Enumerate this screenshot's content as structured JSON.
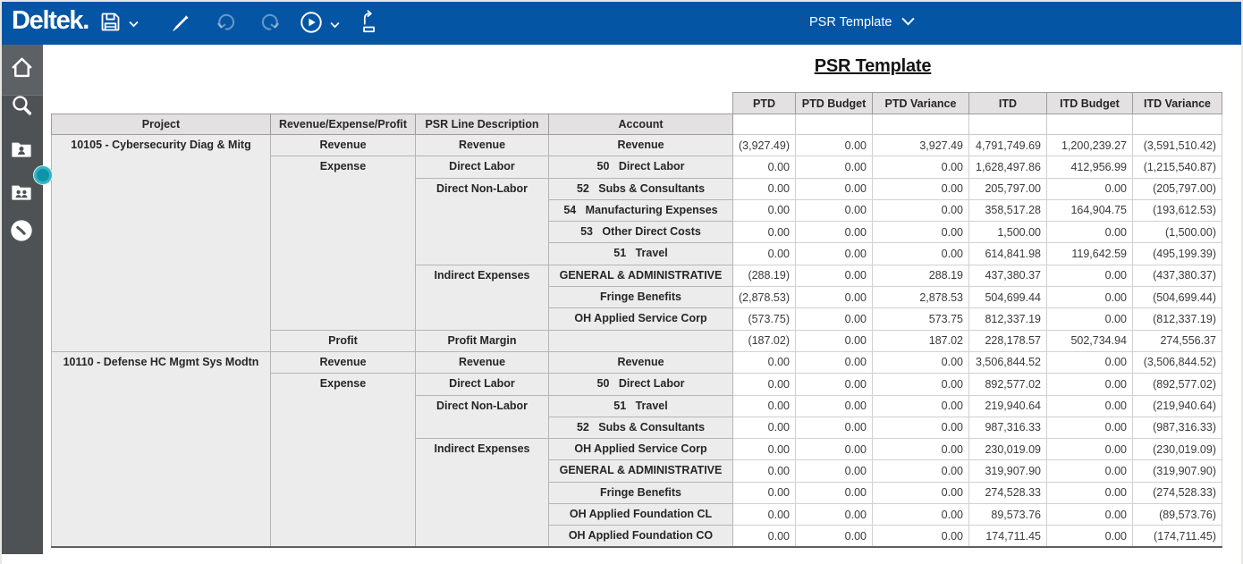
{
  "topbar": {
    "logo": "Deltek.",
    "template_selector": "PSR Template",
    "tools": {
      "save": "Save",
      "edit": "Edit",
      "undo": "Undo",
      "redo": "Redo",
      "run": "Run",
      "export": "Export"
    }
  },
  "sidebar": {
    "items": [
      "home",
      "search",
      "employee",
      "employees",
      "history"
    ]
  },
  "colors": {
    "topbar_blue": "#0455a4",
    "sidebar_gray": "#4e5254",
    "header_gray": "#e3e1e1",
    "label_gray": "#edecec",
    "handle_teal": "#0e93a8"
  },
  "report": {
    "title": "PSR Template",
    "row_headers": [
      "Project",
      "Revenue/Expense/Profit",
      "PSR Line Description",
      "Account"
    ],
    "value_headers": [
      "PTD",
      "PTD Budget",
      "PTD Variance",
      "ITD",
      "ITD Budget",
      "ITD Variance"
    ],
    "projects": [
      {
        "name": "10105 - Cybersecurity Diag & Mitg",
        "groups": [
          {
            "type": "Revenue",
            "lines": [
              {
                "desc": "Revenue",
                "accounts": [
                  {
                    "account": "Revenue",
                    "values": [
                      "(3,927.49)",
                      "0.00",
                      "3,927.49",
                      "4,791,749.69",
                      "1,200,239.27",
                      "(3,591,510.42)"
                    ]
                  }
                ]
              }
            ]
          },
          {
            "type": "Expense",
            "lines": [
              {
                "desc": "Direct Labor",
                "accounts": [
                  {
                    "account": "50   Direct Labor",
                    "values": [
                      "0.00",
                      "0.00",
                      "0.00",
                      "1,628,497.86",
                      "412,956.99",
                      "(1,215,540.87)"
                    ]
                  }
                ]
              },
              {
                "desc": "Direct Non-Labor",
                "accounts": [
                  {
                    "account": "52   Subs & Consultants",
                    "values": [
                      "0.00",
                      "0.00",
                      "0.00",
                      "205,797.00",
                      "0.00",
                      "(205,797.00)"
                    ]
                  },
                  {
                    "account": "54   Manufacturing Expenses",
                    "values": [
                      "0.00",
                      "0.00",
                      "0.00",
                      "358,517.28",
                      "164,904.75",
                      "(193,612.53)"
                    ]
                  },
                  {
                    "account": "53   Other Direct Costs",
                    "values": [
                      "0.00",
                      "0.00",
                      "0.00",
                      "1,500.00",
                      "0.00",
                      "(1,500.00)"
                    ]
                  },
                  {
                    "account": "51   Travel",
                    "values": [
                      "0.00",
                      "0.00",
                      "0.00",
                      "614,841.98",
                      "119,642.59",
                      "(495,199.39)"
                    ]
                  }
                ]
              },
              {
                "desc": "Indirect Expenses",
                "accounts": [
                  {
                    "account": "GENERAL & ADMINISTRATIVE",
                    "values": [
                      "(288.19)",
                      "0.00",
                      "288.19",
                      "437,380.37",
                      "0.00",
                      "(437,380.37)"
                    ]
                  },
                  {
                    "account": "Fringe Benefits",
                    "values": [
                      "(2,878.53)",
                      "0.00",
                      "2,878.53",
                      "504,699.44",
                      "0.00",
                      "(504,699.44)"
                    ]
                  },
                  {
                    "account": "OH Applied Service Corp",
                    "values": [
                      "(573.75)",
                      "0.00",
                      "573.75",
                      "812,337.19",
                      "0.00",
                      "(812,337.19)"
                    ]
                  }
                ]
              }
            ]
          },
          {
            "type": "Profit",
            "lines": [
              {
                "desc": "Profit Margin",
                "accounts": [
                  {
                    "account": "",
                    "values": [
                      "(187.02)",
                      "0.00",
                      "187.02",
                      "228,178.57",
                      "502,734.94",
                      "274,556.37"
                    ]
                  }
                ]
              }
            ]
          }
        ]
      },
      {
        "name": "10110 - Defense HC Mgmt Sys Modtn",
        "groups": [
          {
            "type": "Revenue",
            "lines": [
              {
                "desc": "Revenue",
                "accounts": [
                  {
                    "account": "Revenue",
                    "values": [
                      "0.00",
                      "0.00",
                      "0.00",
                      "3,506,844.52",
                      "0.00",
                      "(3,506,844.52)"
                    ]
                  }
                ]
              }
            ]
          },
          {
            "type": "Expense",
            "lines": [
              {
                "desc": "Direct Labor",
                "accounts": [
                  {
                    "account": "50   Direct Labor",
                    "values": [
                      "0.00",
                      "0.00",
                      "0.00",
                      "892,577.02",
                      "0.00",
                      "(892,577.02)"
                    ]
                  }
                ]
              },
              {
                "desc": "Direct Non-Labor",
                "accounts": [
                  {
                    "account": "51   Travel",
                    "values": [
                      "0.00",
                      "0.00",
                      "0.00",
                      "219,940.64",
                      "0.00",
                      "(219,940.64)"
                    ]
                  },
                  {
                    "account": "52   Subs & Consultants",
                    "values": [
                      "0.00",
                      "0.00",
                      "0.00",
                      "987,316.33",
                      "0.00",
                      "(987,316.33)"
                    ]
                  }
                ]
              },
              {
                "desc": "Indirect Expenses",
                "accounts": [
                  {
                    "account": "OH Applied Service Corp",
                    "values": [
                      "0.00",
                      "0.00",
                      "0.00",
                      "230,019.09",
                      "0.00",
                      "(230,019.09)"
                    ]
                  },
                  {
                    "account": "GENERAL & ADMINISTRATIVE",
                    "values": [
                      "0.00",
                      "0.00",
                      "0.00",
                      "319,907.90",
                      "0.00",
                      "(319,907.90)"
                    ]
                  },
                  {
                    "account": "Fringe Benefits",
                    "values": [
                      "0.00",
                      "0.00",
                      "0.00",
                      "274,528.33",
                      "0.00",
                      "(274,528.33)"
                    ]
                  },
                  {
                    "account": "OH Applied Foundation CL",
                    "values": [
                      "0.00",
                      "0.00",
                      "0.00",
                      "89,573.76",
                      "0.00",
                      "(89,573.76)"
                    ]
                  },
                  {
                    "account": "OH Applied Foundation CO",
                    "values": [
                      "0.00",
                      "0.00",
                      "0.00",
                      "174,711.45",
                      "0.00",
                      "(174,711.45)"
                    ]
                  }
                ]
              }
            ]
          }
        ]
      }
    ]
  }
}
